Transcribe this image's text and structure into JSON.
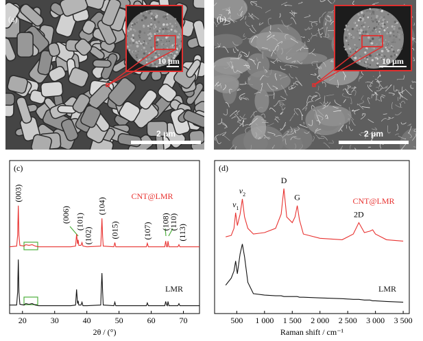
{
  "images": [
    {
      "label": "(a)",
      "scale_bar": "2 μm",
      "inset_scale_bar": "10 μm"
    },
    {
      "label": "(b)",
      "scale_bar": "2 μm",
      "inset_scale_bar": "10 μm"
    }
  ],
  "chart_data": [
    {
      "type": "line",
      "panel_label": "(c)",
      "x_label": "2θ / (°)",
      "xlim": [
        16,
        75
      ],
      "ylim": [
        0,
        100
      ],
      "xticks": [
        20,
        30,
        40,
        50,
        60,
        70
      ],
      "x": [
        16,
        18.2,
        18.5,
        18.7,
        18.9,
        19.2,
        20.5,
        21,
        22,
        23,
        24,
        25,
        30,
        35,
        36.5,
        36.8,
        37.1,
        37.3,
        37.5,
        38.2,
        38.5,
        38.8,
        40,
        44.3,
        44.5,
        44.7,
        44.9,
        45.1,
        48.4,
        48.7,
        49,
        55,
        58.5,
        58.8,
        59.1,
        64.2,
        64.5,
        64.8,
        65.0,
        65.2,
        65.5,
        68.3,
        68.6,
        68.9,
        72,
        75
      ],
      "series": [
        {
          "name": "CNT@LMR",
          "color": "#e8312f",
          "values": [
            47,
            47.5,
            55,
            76,
            55,
            48,
            47.5,
            48.5,
            48,
            48.5,
            47.5,
            47,
            47,
            47,
            47.5,
            56,
            49,
            52,
            48,
            48,
            50,
            47.5,
            47,
            47.5,
            56,
            67,
            54,
            47.5,
            47,
            50,
            47,
            47,
            47,
            49.5,
            47,
            47,
            51,
            47,
            47,
            51,
            47,
            47,
            48.5,
            47,
            47,
            47
          ]
        },
        {
          "name": "LMR",
          "color": "#111111",
          "values": [
            6,
            6,
            15,
            38,
            15,
            6.5,
            6,
            7,
            6.5,
            7,
            6,
            5.5,
            5.5,
            5.5,
            6,
            17,
            7,
            9,
            6,
            6,
            8,
            5.5,
            5.5,
            6,
            18,
            28.5,
            15,
            6,
            5.5,
            8,
            5.5,
            5.5,
            5.5,
            7.5,
            5.5,
            5.5,
            8.5,
            6,
            5.5,
            8.5,
            5.5,
            5.5,
            7,
            5.5,
            5.5,
            5.5
          ]
        }
      ],
      "peak_labels": [
        {
          "text": "(003)",
          "x": 18.7
        },
        {
          "text": "(006)",
          "x": 37.3
        },
        {
          "text": "(101)",
          "x": 36.8
        },
        {
          "text": "(102)",
          "x": 38.5
        },
        {
          "text": "(104)",
          "x": 44.7
        },
        {
          "text": "(015)",
          "x": 48.7
        },
        {
          "text": "(107)",
          "x": 58.8
        },
        {
          "text": "(108)",
          "x": 64.5
        },
        {
          "text": "(110)",
          "x": 65.2
        },
        {
          "text": "(113)",
          "x": 68.6
        }
      ]
    },
    {
      "type": "line",
      "panel_label": "(d)",
      "x_label": "Raman shift / cm⁻¹",
      "xlim": [
        100,
        3610
      ],
      "ylim": [
        0,
        100
      ],
      "xticks": [
        500,
        {
          "value": 1000,
          "label": "1 000"
        },
        {
          "value": 1500,
          "label": "1 500"
        },
        {
          "value": 2000,
          "label": "2 000"
        },
        {
          "value": 2500,
          "label": "2 500"
        },
        {
          "value": 3000,
          "label": "3 000"
        },
        {
          "value": 3500,
          "label": "3 500"
        }
      ],
      "x": [
        300,
        400,
        450,
        480,
        510,
        560,
        600,
        640,
        700,
        800,
        1000,
        1200,
        1300,
        1350,
        1400,
        1500,
        1550,
        1590,
        1630,
        1700,
        2000,
        2400,
        2600,
        2700,
        2800,
        2900,
        2950,
        3000,
        3200,
        3500
      ],
      "series": [
        {
          "name": "CNT@LMR",
          "color": "#e8312f",
          "values": [
            54,
            55,
            60,
            71,
            62,
            70,
            80.7,
            68,
            60,
            56,
            57,
            60,
            70,
            88,
            68,
            64,
            68,
            76,
            66,
            56,
            53,
            52,
            56,
            64,
            57,
            58,
            59,
            56,
            52,
            51
          ]
        },
        {
          "name": "LMR",
          "color": "#111111",
          "values": [
            20,
            25,
            30,
            37,
            28,
            42,
            49,
            40,
            22,
            14,
            13,
            12.5,
            12.5,
            12,
            12,
            12,
            12,
            12,
            11.5,
            11.5,
            11,
            10.5,
            10,
            10,
            9.5,
            9.5,
            9,
            9,
            8.5,
            8
          ]
        }
      ],
      "peak_labels": [
        {
          "text": "v",
          "subscript": "1",
          "x": 480
        },
        {
          "text": "v",
          "subscript": "2",
          "x": 600
        },
        {
          "text": "D",
          "x": 1350
        },
        {
          "text": "G",
          "x": 1590
        },
        {
          "text": "2D",
          "x": 2700
        }
      ]
    }
  ]
}
